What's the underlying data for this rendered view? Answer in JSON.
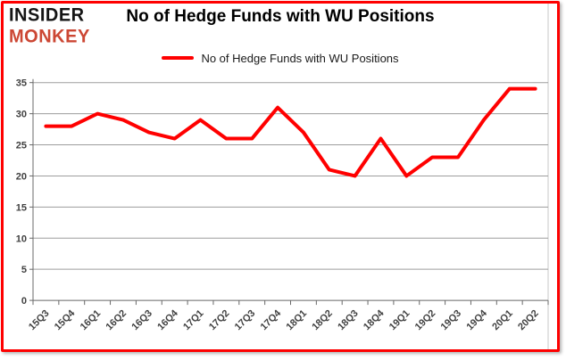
{
  "logo": {
    "line1": "INSIDER",
    "line2": "MONKEY"
  },
  "header": {
    "title": "No of Hedge Funds with WU Positions"
  },
  "legend": {
    "label": "No of Hedge Funds with WU Positions"
  },
  "colors": {
    "frame_border": "#fe0000",
    "series": "#ff0000",
    "gridline": "#9d9d9d",
    "axis": "#686868",
    "tick_label": "#404040",
    "logo_black": "#151515",
    "logo_red": "#cc4734",
    "chart_edge": "#c9c9c9"
  },
  "chart_data": {
    "type": "line",
    "title": "No of Hedge Funds with WU Positions",
    "categories": [
      "15Q3",
      "15Q4",
      "16Q1",
      "16Q2",
      "16Q3",
      "16Q4",
      "17Q1",
      "17Q2",
      "17Q3",
      "17Q4",
      "18Q1",
      "18Q2",
      "18Q3",
      "18Q4",
      "19Q1",
      "19Q2",
      "19Q3",
      "19Q4",
      "20Q1",
      "20Q2"
    ],
    "series": [
      {
        "name": "No of Hedge Funds with WU Positions",
        "color": "#ff0000",
        "values": [
          28,
          28,
          30,
          29,
          27,
          26,
          29,
          26,
          26,
          31,
          27,
          21,
          20,
          26,
          20,
          23,
          23,
          29,
          34,
          34
        ]
      }
    ],
    "ylim": [
      0,
      35
    ],
    "ytick_labels": [
      "0",
      "5",
      "10",
      "15",
      "20",
      "25",
      "30",
      "35"
    ],
    "xlabel": "",
    "ylabel": "",
    "grid": "horizontal",
    "legend_position": "top-center"
  }
}
